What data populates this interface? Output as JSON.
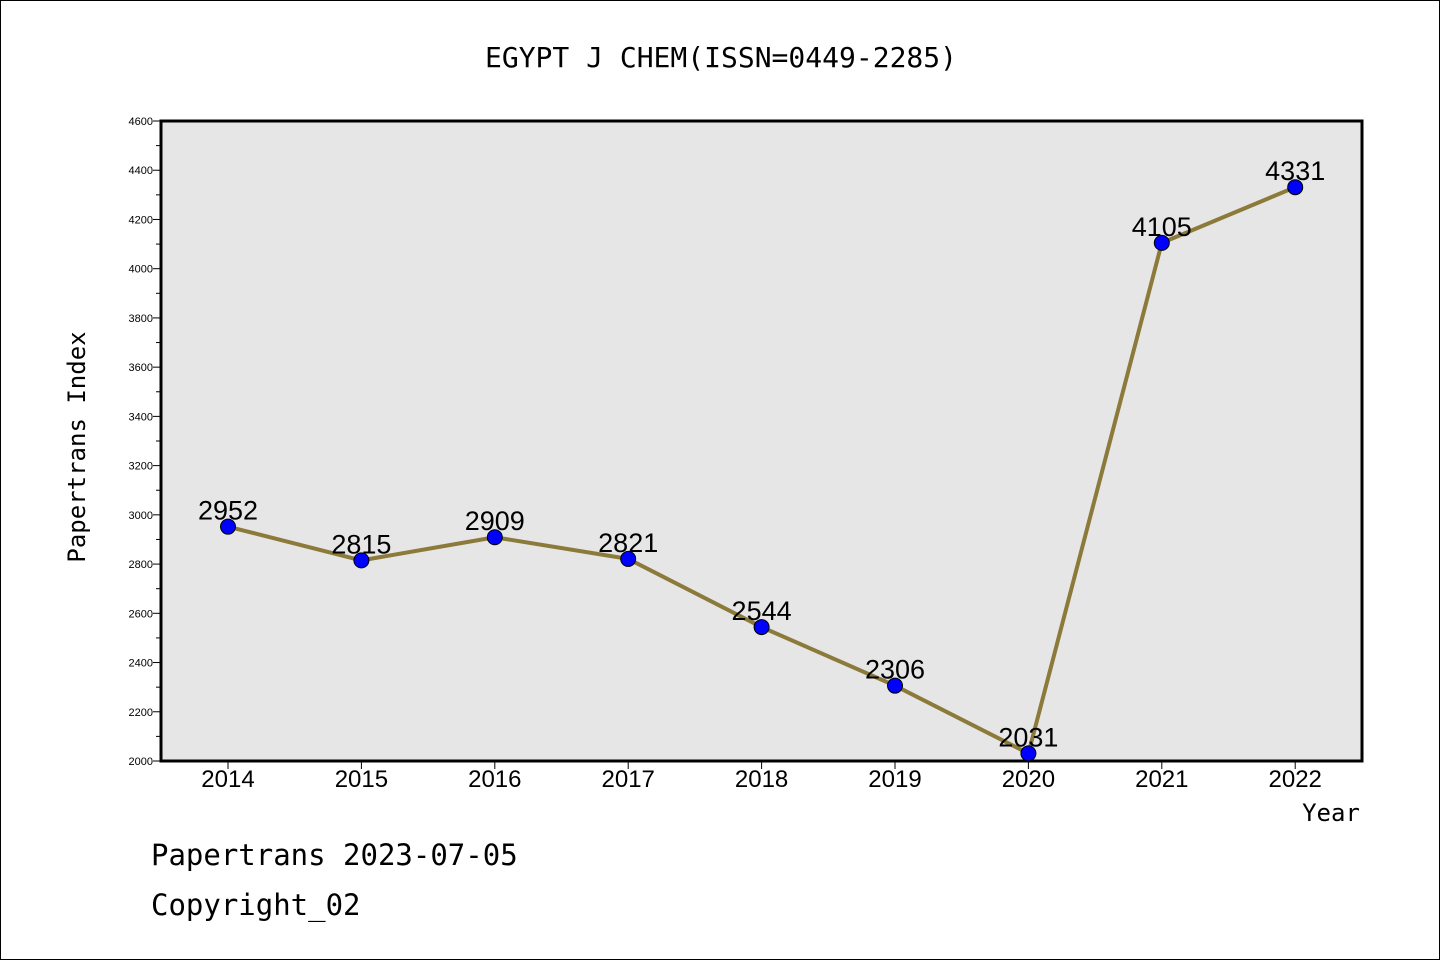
{
  "chart_data": {
    "type": "line",
    "title": "EGYPT J CHEM(ISSN=0449-2285)",
    "xlabel": "Year",
    "ylabel": "Papertrans Index",
    "categories": [
      "2014",
      "2015",
      "2016",
      "2017",
      "2018",
      "2019",
      "2020",
      "2021",
      "2022"
    ],
    "series": [
      {
        "values": [
          2952,
          2815,
          2909,
          2821,
          2544,
          2306,
          2031,
          4105,
          4331
        ]
      }
    ],
    "ylim": [
      2000,
      4600
    ],
    "yticks": [
      2000,
      2200,
      2400,
      2600,
      2800,
      3000,
      3200,
      3400,
      3600,
      3800,
      4000,
      4200,
      4400,
      4600
    ],
    "grid": false,
    "colors": {
      "line": "#8b7a3a",
      "marker": "#0000ff",
      "plot_bg": "#e6e6e6"
    }
  },
  "footer": {
    "line1": "Papertrans 2023-07-05",
    "line2": "Copyright_02"
  }
}
